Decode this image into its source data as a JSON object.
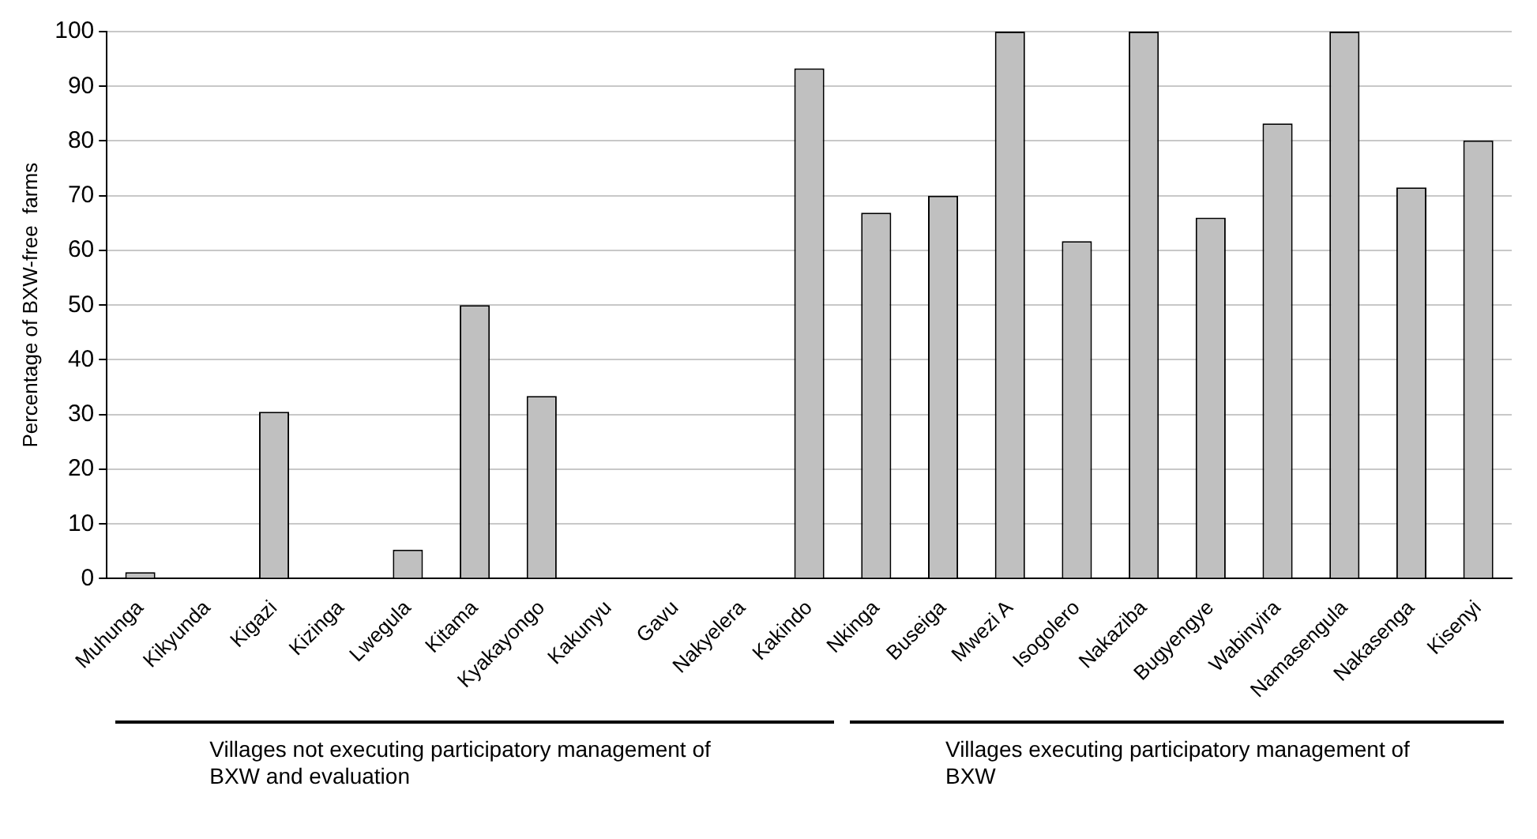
{
  "chart_data": {
    "type": "bar",
    "ylabel": "Percentage of BXW-free  farms",
    "categories": [
      "Muhunga",
      "Kikyunda",
      "Kigazi",
      "Kizinga",
      "Lwegula",
      "Kitama",
      "Kyakayongo",
      "Kakunyu",
      "Gavu",
      "Nakyelera",
      "Kakindo",
      "Nkinga",
      "Buseiga",
      "Mwezi A",
      "Isogolero",
      "Nakaziba",
      "Bugyengye",
      "Wabinyira",
      "Namasengula",
      "Nakasenga",
      "Kisenyi"
    ],
    "values": [
      1.2,
      0,
      30.5,
      0,
      5.3,
      50,
      33.4,
      0,
      0,
      0,
      93.3,
      66.9,
      70,
      100,
      61.7,
      100,
      66,
      83.2,
      100,
      71.5,
      80.1
    ],
    "color": "#c0c0c0",
    "ylim": [
      0,
      100
    ],
    "yticks": [
      0,
      10,
      20,
      30,
      40,
      50,
      60,
      70,
      80,
      90,
      100
    ],
    "grid": "y",
    "legend": false,
    "annotations": [
      "Villages not executing participatory management of BXW and evaluation",
      "Villages executing participatory management of BXW"
    ]
  }
}
